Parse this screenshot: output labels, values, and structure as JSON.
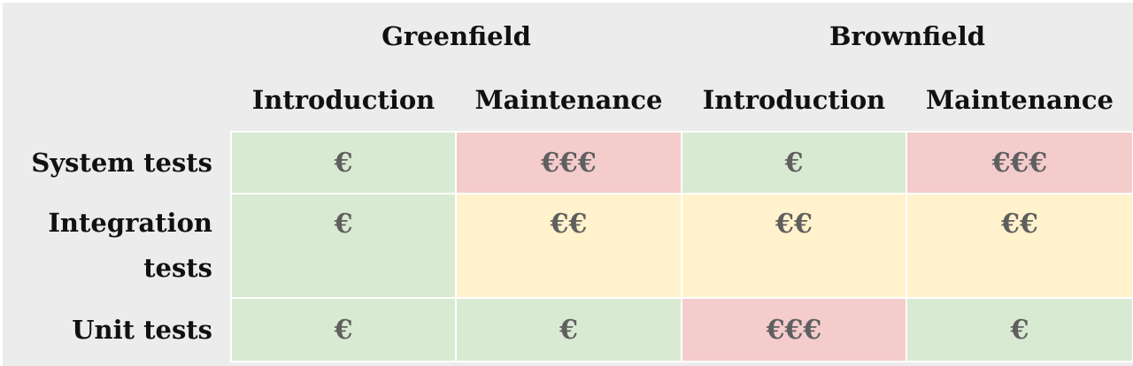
{
  "groups": [
    "Greenfield",
    "Brownfield"
  ],
  "subheaders": [
    "Introduction",
    "Maintenance",
    "Introduction",
    "Maintenance"
  ],
  "rows": [
    {
      "label": "System tests",
      "cells": [
        "€",
        "€€€",
        "€",
        "€€€"
      ]
    },
    {
      "label": "Integration tests",
      "cells": [
        "€",
        "€€",
        "€€",
        "€€"
      ]
    },
    {
      "label": "Unit tests",
      "cells": [
        "€",
        "€",
        "€€€",
        "€"
      ]
    }
  ],
  "colors": {
    "low": "#d9ead3",
    "medium": "#fff2cc",
    "high": "#f4cccc"
  }
}
